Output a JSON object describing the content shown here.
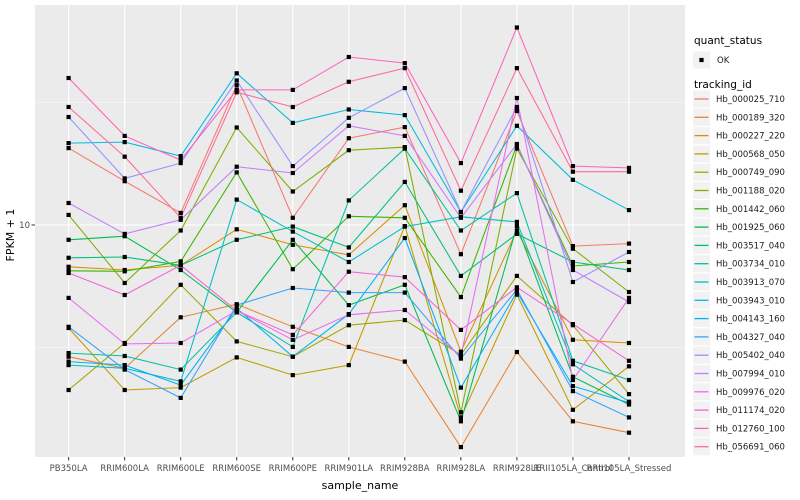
{
  "figure": {
    "panel_bg": "#EBEBEB",
    "grid_color": "#FFFFFF",
    "point_color": "#000000",
    "legend_key_bg": "#F2F2F2"
  },
  "axes": {
    "x_title": "sample_name",
    "y_title": "FPKM + 1",
    "y_tick_label": "10"
  },
  "legend": {
    "quant_title": "quant_status",
    "quant_items": [
      {
        "label": "OK",
        "marker": "black-point"
      }
    ],
    "tracking_title": "tracking_id"
  },
  "chart_data": {
    "type": "line",
    "title": "",
    "xlabel": "sample_name",
    "ylabel": "FPKM + 1",
    "y_scale": "log10",
    "y_major_break": 10,
    "y_minor_breaks": [
      3.162,
      31.62
    ],
    "grid": true,
    "legend_position": "right",
    "panel_y_range": [
      1.13,
      79
    ],
    "point_shape": "black-square",
    "categories": [
      "PB350LA",
      "RRIM600LA",
      "RRIM600LE",
      "RRIM600SE",
      "RRIM600PE",
      "RRIM901LA",
      "RRIM928BA",
      "RRIM928LA",
      "RRIM928LE",
      "RRII105LA_Control",
      "RRII105LA_Stressed"
    ],
    "quant_status_all": "OK",
    "series": [
      {
        "name": "Hb_000025_710",
        "color": "#F8766D",
        "values": [
          20.6,
          15.1,
          11.2,
          37.2,
          10.7,
          22.6,
          25.1,
          7.6,
          29.2,
          8.2,
          8.4
        ]
      },
      {
        "name": "Hb_000189_320",
        "color": "#EA8331",
        "values": [
          2.9,
          2.6,
          4.2,
          4.75,
          3.84,
          3.18,
          2.77,
          1.24,
          3.03,
          1.58,
          1.42
        ]
      },
      {
        "name": "Hb_000227_220",
        "color": "#D89000",
        "values": [
          6.75,
          6.55,
          6.85,
          9.6,
          8.3,
          7.55,
          12.05,
          3.04,
          9.5,
          3.4,
          3.3
        ]
      },
      {
        "name": "Hb_000568_050",
        "color": "#C09B00",
        "values": [
          3.8,
          2.12,
          2.17,
          2.88,
          2.44,
          2.68,
          9.9,
          1.64,
          5.2,
          1.76,
          2.65
        ]
      },
      {
        "name": "Hb_000749_090",
        "color": "#A3A500",
        "values": [
          2.12,
          3.3,
          5.7,
          3.35,
          2.9,
          3.9,
          4.09,
          2.95,
          6.2,
          3.9,
          2.04
        ]
      },
      {
        "name": "Hb_001188_020",
        "color": "#7CAE00",
        "values": [
          11.0,
          5.8,
          9.5,
          25.0,
          13.7,
          20.2,
          20.8,
          1.72,
          20.5,
          8.0,
          5.33
        ]
      },
      {
        "name": "Hb_001442_060",
        "color": "#39B600",
        "values": [
          6.5,
          6.47,
          7.1,
          16.4,
          6.6,
          10.85,
          10.7,
          5.08,
          21.2,
          6.8,
          7.06
        ]
      },
      {
        "name": "Hb_001925_060",
        "color": "#00BB4E",
        "values": [
          8.7,
          9.0,
          6.55,
          4.4,
          8.7,
          4.71,
          5.7,
          1.58,
          9.9,
          2.4,
          1.85
        ]
      },
      {
        "name": "Hb_003517_040",
        "color": "#00BF7D",
        "values": [
          7.35,
          7.4,
          6.85,
          8.7,
          9.85,
          8.1,
          15.0,
          6.2,
          9.2,
          7.06,
          6.55
        ]
      },
      {
        "name": "Hb_003734_010",
        "color": "#00C1A3",
        "values": [
          3.0,
          2.92,
          2.57,
          4.4,
          3.18,
          12.6,
          20.5,
          9.5,
          13.5,
          2.79,
          2.33
        ]
      },
      {
        "name": "Hb_003913_070",
        "color": "#00BFC4",
        "values": [
          2.68,
          2.6,
          2.3,
          12.7,
          9.4,
          7.06,
          9.85,
          10.8,
          10.3,
          2.7,
          1.9
        ]
      },
      {
        "name": "Hb_003943_010",
        "color": "#00BAE0",
        "values": [
          21.6,
          21.8,
          19.1,
          41.6,
          26.1,
          29.6,
          28.1,
          11.3,
          25.4,
          15.3,
          11.5
        ]
      },
      {
        "name": "Hb_004143_160",
        "color": "#00B0F6",
        "values": [
          2.77,
          2.68,
          2.22,
          4.57,
          2.9,
          4.33,
          8.85,
          2.17,
          5.33,
          2.2,
          1.88
        ]
      },
      {
        "name": "Hb_004327_040",
        "color": "#35A2FF",
        "values": [
          3.84,
          2.57,
          1.97,
          4.71,
          5.53,
          5.3,
          5.3,
          2.85,
          5.45,
          2.1,
          1.64
        ]
      },
      {
        "name": "Hb_005402_040",
        "color": "#9590FF",
        "values": [
          27.6,
          15.5,
          17.9,
          38.9,
          17.4,
          27.4,
          36.2,
          11.3,
          30.3,
          5.85,
          7.76
        ]
      },
      {
        "name": "Hb_007994_010",
        "color": "#C77CFF",
        "values": [
          12.3,
          9.2,
          10.5,
          17.3,
          16.3,
          25.4,
          23.1,
          10.7,
          21.4,
          6.55,
          4.85
        ]
      },
      {
        "name": "Hb_009976_020",
        "color": "#E76BF3",
        "values": [
          5.04,
          3.27,
          3.3,
          4.47,
          3.4,
          4.3,
          4.5,
          2.92,
          33.0,
          2.33,
          5.04
        ]
      },
      {
        "name": "Hb_011174_020",
        "color": "#FA62DB",
        "values": [
          6.37,
          5.18,
          6.85,
          4.47,
          3.56,
          6.45,
          6.13,
          3.73,
          5.57,
          3.94,
          2.79
        ]
      },
      {
        "name": "Hb_012760_100",
        "color": "#FF62BC",
        "values": [
          39.8,
          23.1,
          18.4,
          35.6,
          35.6,
          48.5,
          45.8,
          17.9,
          64.0,
          17.4,
          17.1
        ]
      },
      {
        "name": "Hb_056691_060",
        "color": "#FF6A98",
        "values": [
          30.3,
          19.0,
          10.7,
          34.8,
          30.3,
          38.4,
          43.7,
          13.8,
          43.7,
          16.5,
          16.5
        ]
      }
    ]
  }
}
